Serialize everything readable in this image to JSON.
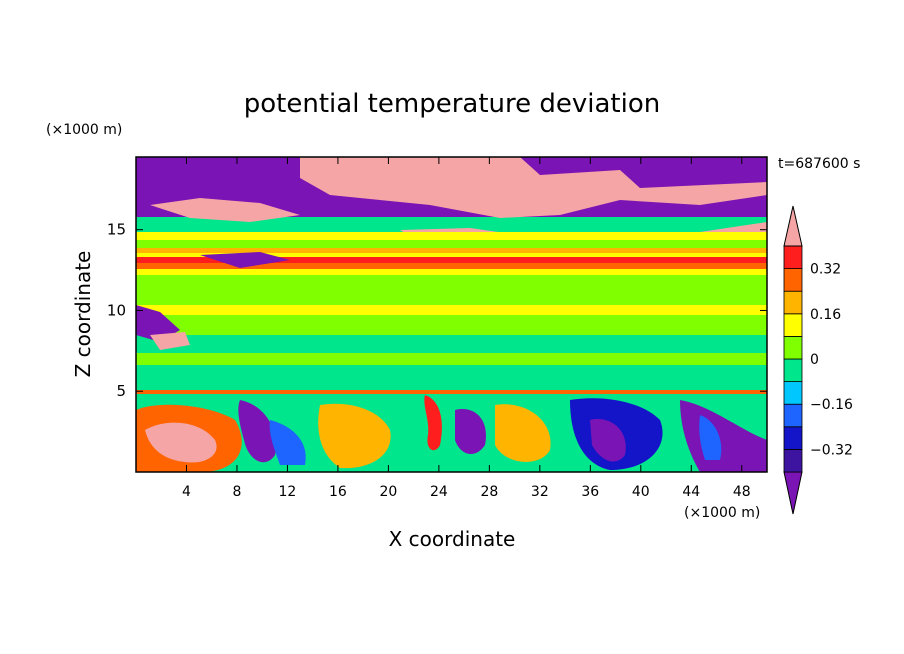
{
  "chart_data": {
    "type": "heatmap",
    "title": "potential temperature deviation",
    "xlabel": "X coordinate",
    "ylabel": "Z coordinate",
    "x_unit": "(×1000 m)",
    "y_unit": "(×1000 m)",
    "time_label": "t=687600 s",
    "xlim": [
      0,
      50
    ],
    "ylim": [
      0,
      19.5
    ],
    "x_ticks": [
      4,
      8,
      12,
      16,
      20,
      24,
      28,
      32,
      36,
      40,
      44,
      48
    ],
    "y_ticks": [
      5,
      10,
      15
    ],
    "colorbar": {
      "levels": [
        -0.4,
        -0.32,
        -0.24,
        -0.16,
        -0.08,
        0,
        0.08,
        0.16,
        0.24,
        0.32,
        0.4
      ],
      "tick_labels": [
        {
          "value": 0.32,
          "label": "0.32"
        },
        {
          "value": 0.16,
          "label": "0.16"
        },
        {
          "value": 0,
          "label": "0"
        },
        {
          "value": -0.16,
          "label": "−0.16"
        },
        {
          "value": -0.32,
          "label": "−0.32"
        }
      ],
      "colors": [
        "#7a14b4",
        "#3c14a0",
        "#1414c8",
        "#1e64ff",
        "#00c8ff",
        "#00e68c",
        "#80ff00",
        "#ffff00",
        "#ffb400",
        "#ff6400",
        "#ff1e1e",
        "#f5a5a5"
      ],
      "extend": "both"
    },
    "layers": [
      {
        "z": [
          17.5,
          19.5
        ],
        "dominant": "below -0.4 with patches above 0.4"
      },
      {
        "z": [
          13,
          15
        ],
        "dominant": "mixed, warm banded layer near 13.3"
      },
      {
        "z": [
          5,
          13
        ],
        "dominant": "-0.08 to 0.08"
      },
      {
        "z": [
          0,
          5
        ],
        "dominant": "convective eddies -0.4 to 0.4"
      }
    ]
  }
}
